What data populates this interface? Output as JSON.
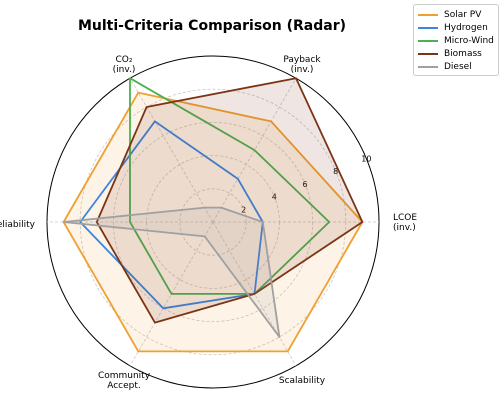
{
  "chart_data": {
    "type": "radar",
    "title": "Multi-Criteria Comparison (Radar)",
    "axes": [
      "LCOE\n(inv.)",
      "Payback\n(inv.)",
      "CO₂\n(inv.)",
      "Reliability",
      "Community\nAccept.",
      "Scalability"
    ],
    "rlim": [
      0,
      10
    ],
    "r_ticks": [
      "2",
      "4",
      "6",
      "8",
      "10"
    ],
    "grid": true,
    "legend": "top-right outside",
    "series": [
      {
        "name": "Solar PV",
        "color": "#f0a030",
        "values": [
          9,
          7,
          9,
          9,
          9,
          9
        ],
        "filled": true
      },
      {
        "name": "Hydrogen",
        "color": "#3a86e0",
        "values": [
          3,
          3,
          7,
          8,
          6,
          5
        ],
        "filled": false
      },
      {
        "name": "Micro-Wind",
        "color": "#4caf50",
        "values": [
          7,
          5,
          10,
          5,
          5,
          5
        ],
        "filled": false
      },
      {
        "name": "Biomass",
        "color": "#7b3516",
        "values": [
          9,
          10,
          8,
          7,
          7,
          5
        ],
        "filled": true
      },
      {
        "name": "Diesel",
        "color": "#a0a0a0",
        "values": [
          3,
          1,
          1,
          9,
          1,
          8
        ],
        "filled": true
      }
    ]
  }
}
